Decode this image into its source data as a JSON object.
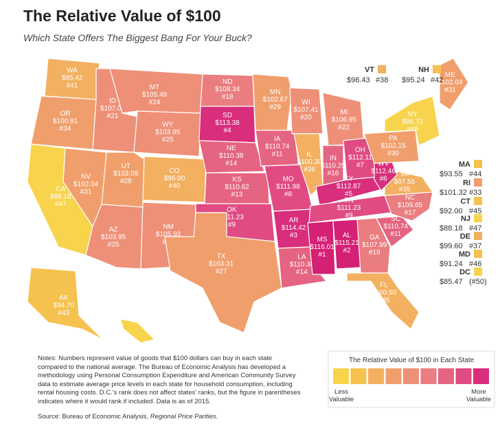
{
  "header": {
    "title": "The Relative Value of $100",
    "subtitle": "Which State Offers The Biggest Bang For Your Buck?"
  },
  "states": [
    {
      "abbr": "WA",
      "value": "$95.42",
      "rank": "#41",
      "color": "#f3b060"
    },
    {
      "abbr": "OR",
      "value": "$100.81",
      "rank": "#34",
      "color": "#f09f6c"
    },
    {
      "abbr": "CA",
      "value": "$88.18",
      "rank": "#47",
      "color": "#f7d44c"
    },
    {
      "abbr": "NV",
      "value": "$102.04",
      "rank": "#31",
      "color": "#f09f6c"
    },
    {
      "abbr": "ID",
      "value": "$107.07",
      "rank": "#21",
      "color": "#ee9078"
    },
    {
      "abbr": "MT",
      "value": "$105.49",
      "rank": "#24",
      "color": "#ee9078"
    },
    {
      "abbr": "WY",
      "value": "$103.95",
      "rank": "#25",
      "color": "#ee9078"
    },
    {
      "abbr": "UT",
      "value": "$103.09",
      "rank": "#28",
      "color": "#f09f6c"
    },
    {
      "abbr": "CO",
      "value": "$96.90",
      "rank": "#40",
      "color": "#f3b060"
    },
    {
      "abbr": "AZ",
      "value": "$103.95",
      "rank": "#25",
      "color": "#ee9078"
    },
    {
      "abbr": "NM",
      "value": "$105.93",
      "rank": "#23",
      "color": "#ee9078"
    },
    {
      "abbr": "ND",
      "value": "$108.34",
      "rank": "#18",
      "color": "#ea7d80"
    },
    {
      "abbr": "SD",
      "value": "$113.38",
      "rank": "#4",
      "color": "#d82e7c"
    },
    {
      "abbr": "NE",
      "value": "$110.38",
      "rank": "#14",
      "color": "#e56481"
    },
    {
      "abbr": "KS",
      "value": "$110.62",
      "rank": "#13",
      "color": "#e56481"
    },
    {
      "abbr": "OK",
      "value": "$111.23",
      "rank": "#9",
      "color": "#e04b82"
    },
    {
      "abbr": "TX",
      "value": "$103.31",
      "rank": "#27",
      "color": "#f09f6c"
    },
    {
      "abbr": "MN",
      "value": "$102.67",
      "rank": "#29",
      "color": "#f09f6c"
    },
    {
      "abbr": "IA",
      "value": "$110.74",
      "rank": "#11",
      "color": "#e56481"
    },
    {
      "abbr": "MO",
      "value": "$111.98",
      "rank": "#8",
      "color": "#e04b82"
    },
    {
      "abbr": "AR",
      "value": "$114.42",
      "rank": "#3",
      "color": "#d82e7c"
    },
    {
      "abbr": "LA",
      "value": "$110.38",
      "rank": "#14",
      "color": "#e56481"
    },
    {
      "abbr": "WI",
      "value": "$107.41",
      "rank": "#20",
      "color": "#ee9078"
    },
    {
      "abbr": "IL",
      "value": "$100.30",
      "rank": "#36",
      "color": "#f3b060"
    },
    {
      "abbr": "MI",
      "value": "$106.95",
      "rank": "#22",
      "color": "#ee9078"
    },
    {
      "abbr": "IN",
      "value": "$110.25",
      "rank": "#16",
      "color": "#e56481"
    },
    {
      "abbr": "OH",
      "value": "$112.11",
      "rank": "#7",
      "color": "#e04b82"
    },
    {
      "abbr": "KY",
      "value": "$112.87",
      "rank": "#5",
      "color": "#d82e7c"
    },
    {
      "abbr": "TN",
      "value": "$111.23",
      "rank": "#9",
      "color": "#e04b82"
    },
    {
      "abbr": "MS",
      "value": "$116.01",
      "rank": "#1",
      "color": "#d42075"
    },
    {
      "abbr": "AL",
      "value": "$115.21",
      "rank": "#2",
      "color": "#d42075"
    },
    {
      "abbr": "GA",
      "value": "$107.99",
      "rank": "#19",
      "color": "#ea7d80"
    },
    {
      "abbr": "FL",
      "value": "$100.50",
      "rank": "#35",
      "color": "#f3b060"
    },
    {
      "abbr": "SC",
      "value": "$110.74",
      "rank": "#11",
      "color": "#e56481"
    },
    {
      "abbr": "NC",
      "value": "$109.65",
      "rank": "#17",
      "color": "#ea7d80"
    },
    {
      "abbr": "VA",
      "value": "$97.56",
      "rank": "#39",
      "color": "#f3b060"
    },
    {
      "abbr": "WV",
      "value": "$112.46",
      "rank": "#6",
      "color": "#d82e7c"
    },
    {
      "abbr": "PA",
      "value": "$102.15",
      "rank": "#30",
      "color": "#f09f6c"
    },
    {
      "abbr": "NY",
      "value": "$86.73",
      "rank": "#49",
      "color": "#f7d44c"
    },
    {
      "abbr": "ME",
      "value": "$102.04",
      "rank": "#31",
      "color": "#f09f6c"
    },
    {
      "abbr": "AK",
      "value": "$94.70",
      "rank": "#43",
      "color": "#f5c14f"
    },
    {
      "abbr": "HI",
      "value": "$84.18",
      "rank": "#50",
      "color": "#f7d44c"
    }
  ],
  "callouts": [
    {
      "abbr": "VT",
      "value": "$98.43",
      "rank": "#38",
      "color": "#f3b060"
    },
    {
      "abbr": "NH",
      "value": "$95.24",
      "rank": "#42",
      "color": "#f5c14f"
    },
    {
      "abbr": "MA",
      "value": "$93.55",
      "rank": "#44",
      "color": "#f5c14f"
    },
    {
      "abbr": "RI",
      "value": "$101.32",
      "rank": "#33",
      "color": "#f09f6c"
    },
    {
      "abbr": "CT",
      "value": "$92.00",
      "rank": "#45",
      "color": "#f5c14f"
    },
    {
      "abbr": "NJ",
      "value": "$88.18",
      "rank": "#47",
      "color": "#f7d44c"
    },
    {
      "abbr": "DE",
      "value": "$99.60",
      "rank": "#37",
      "color": "#f3b060"
    },
    {
      "abbr": "MD",
      "value": "$91.24",
      "rank": "#46",
      "color": "#f5c14f"
    },
    {
      "abbr": "DC",
      "value": "$85.47",
      "rank": "(#50)",
      "color": "#f7d44c"
    }
  ],
  "notes": "Notes: Numbers represent value of goods that $100 dollars can buy in each state compared to the national average. The Bureau of Economic Analysis has developed a methodology using Personal Consumption Expenditure and American Community Survey data to estimate average price levels in each state for household consumption, including rental housing costs. D.C.'s rank does not affect states' ranks, but the figure in parentheses indicates where it would rank if included. Data is as of 2015.",
  "source": {
    "label": "Source: Bureau of Economic Analysis,",
    "title": "Regional Price Parities."
  },
  "legend": {
    "title": "The Relative Value of $100 in Each State",
    "colors": [
      "#f7d44c",
      "#f5c14f",
      "#f3b060",
      "#f09f6c",
      "#ee9078",
      "#ea7d80",
      "#e56481",
      "#e04b82",
      "#d82e7c"
    ],
    "low": "Less Valuable",
    "high": "More Valuable"
  }
}
